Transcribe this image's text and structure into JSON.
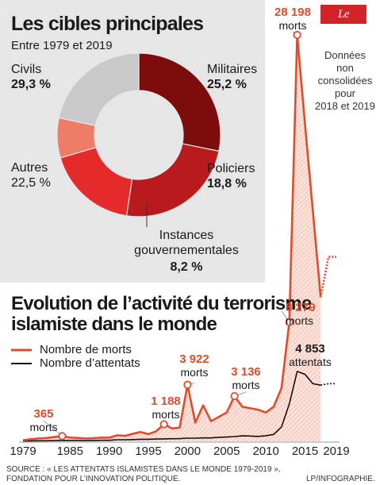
{
  "brand": "Le Parisien",
  "pie": {
    "title": "Les cibles principales",
    "subtitle": "Entre 1979 et 2019",
    "slices": [
      {
        "label": "Civils",
        "pct_label": "29,3 %",
        "value": 29.3,
        "color": "#7d0c0c",
        "pct_color": "#8b1010"
      },
      {
        "label": "Militaires",
        "pct_label": "25,2 %",
        "value": 25.2,
        "color": "#b81a1e",
        "pct_color": "#a31618"
      },
      {
        "label": "Policiers",
        "pct_label": "18,8 %",
        "value": 18.8,
        "color": "#e42a2a",
        "pct_color": "#d6292b"
      },
      {
        "label": "Instances gouvernementales",
        "pct_label": "8,2 %",
        "value": 8.2,
        "color": "#ef7c66",
        "pct_color": "#e2603d"
      },
      {
        "label": "Autres",
        "pct_label": "22,5 %",
        "value": 22.5,
        "color": "#c9c9c9",
        "pct_color": "#9a9a9a"
      }
    ]
  },
  "line": {
    "title": "Evolution de l’activité du terrorisme islamiste dans le monde",
    "title_line1": "Evolution de l’activité du terrorisme",
    "title_line2": "islamiste dans le monde",
    "legend_deaths": "Nombre de morts",
    "legend_attacks": "Nombre d’attentats",
    "x_ticks": [
      "1979",
      "1985",
      "1990",
      "1995",
      "2000",
      "2005",
      "2010",
      "2015",
      "2019"
    ],
    "note": "Données non consolidées pour 2018 et 2019",
    "note_lines": [
      "Données",
      "non",
      "consolidées",
      "pour",
      "2018 et 2019"
    ],
    "annotations": [
      {
        "year": 1984,
        "value": "365",
        "unit": "morts"
      },
      {
        "year": 1997,
        "value": "1 188",
        "unit": "morts"
      },
      {
        "year": 2000,
        "value": "3 922",
        "unit": "morts"
      },
      {
        "year": 2006,
        "value": "3 136",
        "unit": "morts"
      },
      {
        "year": 2013,
        "value": "8 279",
        "unit": "morts"
      },
      {
        "year": 2014,
        "value": "28 198",
        "unit": "morts"
      },
      {
        "year": 2014,
        "value": "4 853",
        "unit": "attentats"
      }
    ]
  },
  "source": "SOURCE : « LES ATTENTATS ISLAMISTES DANS LE MONDE 1979-2019 », FONDATION POUR L’INNOVATION POLITIQUE.",
  "source_line1": "SOURCE : « LES ATTENTATS ISLAMISTES DANS LE MONDE 1979-2019 »,",
  "source_line2": "FONDATION POUR L’INNOVATION POLITIQUE.",
  "credit": "LP/INFOGRAPHIE.",
  "chart_data": [
    {
      "type": "pie",
      "title": "Les cibles principales",
      "subtitle": "Entre 1979 et 2019",
      "categories": [
        "Civils",
        "Militaires",
        "Policiers",
        "Instances gouvernementales",
        "Autres"
      ],
      "values": [
        29.3,
        25.2,
        18.8,
        8.2,
        22.5
      ]
    },
    {
      "type": "line",
      "title": "Evolution de l’activité du terrorisme islamiste dans le monde",
      "x": [
        1979,
        1980,
        1981,
        1982,
        1983,
        1984,
        1985,
        1986,
        1987,
        1988,
        1989,
        1990,
        1991,
        1992,
        1993,
        1994,
        1995,
        1996,
        1997,
        1998,
        1999,
        2000,
        2001,
        2002,
        2003,
        2004,
        2005,
        2006,
        2007,
        2008,
        2009,
        2010,
        2011,
        2012,
        2013,
        2014,
        2015,
        2016,
        2017,
        2018,
        2019
      ],
      "xlim": [
        1979,
        2019
      ],
      "ylim": [
        0,
        28198
      ],
      "series": [
        {
          "name": "Nombre de morts",
          "color": "#e04b2b",
          "values": [
            80,
            150,
            200,
            230,
            300,
            365,
            260,
            240,
            200,
            220,
            260,
            250,
            420,
            380,
            520,
            650,
            500,
            700,
            1188,
            900,
            950,
            3922,
            1300,
            2500,
            1400,
            1700,
            2000,
            3136,
            2400,
            2300,
            2200,
            2000,
            2400,
            3700,
            8279,
            28198,
            22000,
            16000,
            10000,
            12800,
            12800
          ]
        },
        {
          "name": "Nombre d’attentats",
          "color": "#111111",
          "values": [
            20,
            30,
            40,
            40,
            50,
            60,
            60,
            60,
            50,
            60,
            70,
            70,
            110,
            110,
            120,
            140,
            140,
            160,
            170,
            180,
            190,
            220,
            220,
            240,
            240,
            280,
            300,
            330,
            380,
            370,
            340,
            390,
            480,
            1000,
            2600,
            4853,
            4650,
            4000,
            3900,
            4000,
            4000
          ]
        }
      ],
      "x_ticks": [
        "1979",
        "1985",
        "1990",
        "1995",
        "2000",
        "2005",
        "2010",
        "2015",
        "2019"
      ],
      "grid": false,
      "legend": "top-left"
    }
  ]
}
